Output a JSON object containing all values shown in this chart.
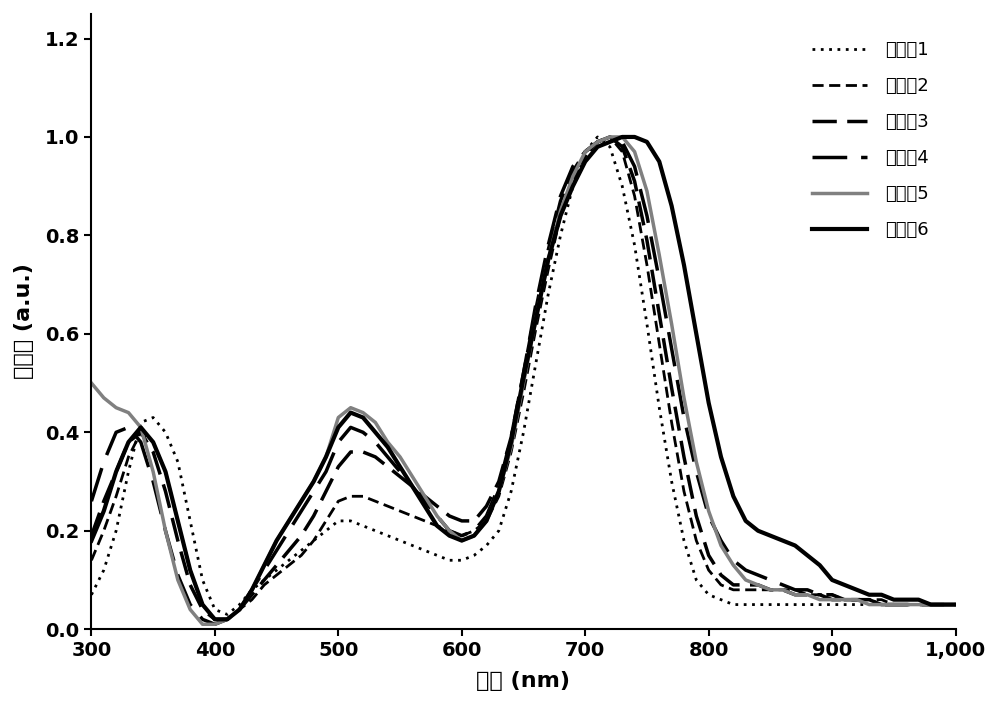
{
  "title": "",
  "xlabel": "波长 (nm)",
  "ylabel": "吸收度 (a.u.)",
  "xlim": [
    300,
    1000
  ],
  "ylim": [
    0.0,
    1.25
  ],
  "xticks": [
    300,
    400,
    500,
    600,
    700,
    800,
    900,
    1000
  ],
  "yticks": [
    0.0,
    0.2,
    0.4,
    0.6,
    0.8,
    1.0,
    1.2
  ],
  "background_color": "#ffffff",
  "legend_labels": [
    "实施例1",
    "实施例2",
    "实施例3",
    "实施例4",
    "实施例5",
    "实施例6"
  ],
  "series": {
    "ex1": {
      "color": "#000000",
      "linestyle": "dotted",
      "linewidth": 2.0,
      "label": "实施例1"
    },
    "ex2": {
      "color": "#000000",
      "linestyle": "dashed_dense",
      "linewidth": 2.0,
      "label": "实施例2"
    },
    "ex3": {
      "color": "#000000",
      "linestyle": "dashed_loose",
      "linewidth": 2.5,
      "label": "实施例3"
    },
    "ex4": {
      "color": "#000000",
      "linestyle": "solid",
      "linewidth": 2.5,
      "label": "实施例4"
    },
    "ex5": {
      "color": "#808080",
      "linestyle": "solid",
      "linewidth": 2.5,
      "label": "实施例5"
    },
    "ex6": {
      "color": "#000000",
      "linestyle": "solid",
      "linewidth": 3.0,
      "label": "实施例6"
    }
  },
  "wavelengths": [
    300,
    310,
    320,
    330,
    340,
    350,
    360,
    370,
    380,
    390,
    400,
    410,
    420,
    430,
    440,
    450,
    460,
    470,
    480,
    490,
    500,
    510,
    520,
    530,
    540,
    550,
    560,
    570,
    580,
    590,
    600,
    610,
    620,
    630,
    640,
    650,
    660,
    670,
    680,
    690,
    700,
    710,
    720,
    730,
    740,
    750,
    760,
    770,
    780,
    790,
    800,
    810,
    820,
    830,
    840,
    850,
    860,
    870,
    880,
    890,
    900,
    910,
    920,
    930,
    940,
    950,
    960,
    970,
    980,
    990,
    1000
  ],
  "ex1_values": [
    0.07,
    0.12,
    0.2,
    0.32,
    0.42,
    0.43,
    0.4,
    0.34,
    0.22,
    0.1,
    0.04,
    0.03,
    0.05,
    0.08,
    0.1,
    0.12,
    0.14,
    0.16,
    0.18,
    0.2,
    0.22,
    0.22,
    0.21,
    0.2,
    0.19,
    0.18,
    0.17,
    0.16,
    0.15,
    0.14,
    0.14,
    0.15,
    0.17,
    0.2,
    0.28,
    0.4,
    0.54,
    0.68,
    0.8,
    0.9,
    0.97,
    1.0,
    0.98,
    0.9,
    0.78,
    0.62,
    0.45,
    0.3,
    0.18,
    0.1,
    0.07,
    0.06,
    0.05,
    0.05,
    0.05,
    0.05,
    0.05,
    0.05,
    0.05,
    0.05,
    0.05,
    0.05,
    0.05,
    0.05,
    0.05,
    0.05,
    0.05,
    0.05,
    0.05,
    0.05,
    0.05
  ],
  "ex2_values": [
    0.14,
    0.2,
    0.27,
    0.35,
    0.4,
    0.38,
    0.32,
    0.22,
    0.12,
    0.05,
    0.02,
    0.02,
    0.04,
    0.06,
    0.09,
    0.11,
    0.13,
    0.15,
    0.18,
    0.22,
    0.26,
    0.27,
    0.27,
    0.26,
    0.25,
    0.24,
    0.23,
    0.22,
    0.21,
    0.2,
    0.19,
    0.2,
    0.22,
    0.27,
    0.36,
    0.48,
    0.61,
    0.73,
    0.84,
    0.91,
    0.96,
    0.99,
    1.0,
    0.97,
    0.88,
    0.74,
    0.58,
    0.42,
    0.28,
    0.18,
    0.12,
    0.09,
    0.08,
    0.08,
    0.08,
    0.08,
    0.08,
    0.08,
    0.07,
    0.07,
    0.07,
    0.06,
    0.06,
    0.06,
    0.06,
    0.05,
    0.05,
    0.05,
    0.05,
    0.05,
    0.05
  ],
  "ex3_values": [
    0.19,
    0.26,
    0.32,
    0.38,
    0.4,
    0.36,
    0.28,
    0.18,
    0.09,
    0.04,
    0.02,
    0.02,
    0.04,
    0.07,
    0.1,
    0.13,
    0.16,
    0.19,
    0.23,
    0.28,
    0.33,
    0.36,
    0.36,
    0.35,
    0.33,
    0.31,
    0.29,
    0.27,
    0.25,
    0.23,
    0.22,
    0.22,
    0.25,
    0.3,
    0.39,
    0.52,
    0.65,
    0.77,
    0.87,
    0.93,
    0.97,
    0.99,
    1.0,
    0.98,
    0.91,
    0.79,
    0.64,
    0.49,
    0.35,
    0.23,
    0.15,
    0.11,
    0.09,
    0.09,
    0.09,
    0.08,
    0.08,
    0.07,
    0.07,
    0.07,
    0.06,
    0.06,
    0.06,
    0.06,
    0.05,
    0.05,
    0.05,
    0.05,
    0.05,
    0.05,
    0.05
  ],
  "ex4_values": [
    0.26,
    0.34,
    0.4,
    0.41,
    0.38,
    0.3,
    0.2,
    0.11,
    0.05,
    0.02,
    0.01,
    0.02,
    0.04,
    0.08,
    0.12,
    0.16,
    0.2,
    0.24,
    0.28,
    0.32,
    0.38,
    0.41,
    0.4,
    0.38,
    0.35,
    0.32,
    0.29,
    0.26,
    0.23,
    0.2,
    0.19,
    0.2,
    0.23,
    0.29,
    0.39,
    0.52,
    0.66,
    0.78,
    0.88,
    0.94,
    0.97,
    0.99,
    1.0,
    0.99,
    0.94,
    0.84,
    0.71,
    0.57,
    0.43,
    0.32,
    0.23,
    0.18,
    0.14,
    0.12,
    0.11,
    0.1,
    0.09,
    0.08,
    0.08,
    0.07,
    0.07,
    0.06,
    0.06,
    0.06,
    0.05,
    0.05,
    0.05,
    0.05,
    0.05,
    0.05,
    0.05
  ],
  "ex5_values": [
    0.5,
    0.47,
    0.45,
    0.44,
    0.41,
    0.32,
    0.2,
    0.1,
    0.04,
    0.01,
    0.01,
    0.02,
    0.04,
    0.08,
    0.13,
    0.18,
    0.22,
    0.26,
    0.3,
    0.35,
    0.43,
    0.45,
    0.44,
    0.42,
    0.38,
    0.35,
    0.31,
    0.27,
    0.23,
    0.2,
    0.18,
    0.19,
    0.22,
    0.28,
    0.37,
    0.5,
    0.63,
    0.75,
    0.85,
    0.92,
    0.97,
    0.99,
    1.0,
    1.0,
    0.97,
    0.89,
    0.76,
    0.62,
    0.47,
    0.34,
    0.24,
    0.17,
    0.13,
    0.1,
    0.09,
    0.08,
    0.08,
    0.07,
    0.07,
    0.06,
    0.06,
    0.06,
    0.06,
    0.05,
    0.05,
    0.05,
    0.05,
    0.05,
    0.05,
    0.05,
    0.05
  ],
  "ex6_values": [
    0.18,
    0.24,
    0.32,
    0.38,
    0.41,
    0.38,
    0.32,
    0.22,
    0.12,
    0.05,
    0.02,
    0.02,
    0.04,
    0.08,
    0.13,
    0.18,
    0.22,
    0.26,
    0.3,
    0.35,
    0.41,
    0.44,
    0.43,
    0.4,
    0.37,
    0.33,
    0.29,
    0.25,
    0.21,
    0.19,
    0.18,
    0.19,
    0.22,
    0.28,
    0.38,
    0.51,
    0.63,
    0.75,
    0.84,
    0.9,
    0.95,
    0.98,
    0.99,
    1.0,
    1.0,
    0.99,
    0.95,
    0.86,
    0.74,
    0.6,
    0.46,
    0.35,
    0.27,
    0.22,
    0.2,
    0.19,
    0.18,
    0.17,
    0.15,
    0.13,
    0.1,
    0.09,
    0.08,
    0.07,
    0.07,
    0.06,
    0.06,
    0.06,
    0.05,
    0.05,
    0.05
  ]
}
